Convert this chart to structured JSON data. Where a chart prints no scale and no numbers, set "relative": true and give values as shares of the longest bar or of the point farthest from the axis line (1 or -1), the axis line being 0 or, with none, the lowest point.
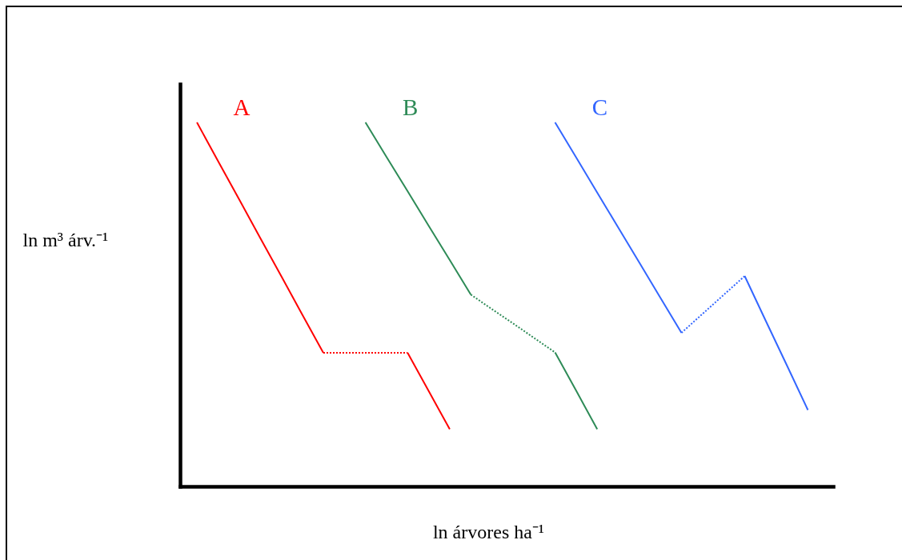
{
  "chart_data": {
    "type": "line",
    "relative": true,
    "xlabel": "ln árvores ha⁻¹",
    "ylabel": "ln m³ árv.⁻¹",
    "categories": [
      null,
      null,
      null,
      null,
      null,
      null,
      null,
      null,
      null,
      null,
      null,
      null,
      null,
      null,
      null,
      null,
      null,
      null,
      null,
      null,
      null,
      null,
      null,
      null,
      null,
      null,
      null,
      null,
      null,
      null
    ],
    "series": [
      {
        "name": "A",
        "color": "#ff0000",
        "line_style": "solid",
        "values": [
          1,
          0.894,
          0.789,
          0.683,
          0.578,
          0.472,
          0.367,
          null,
          null,
          null,
          null,
          null,
          null,
          null,
          null,
          null,
          null,
          null,
          null,
          null,
          null,
          null,
          null,
          null,
          null,
          null,
          null,
          null,
          null,
          null
        ]
      },
      {
        "color": "#ff0000",
        "line_style": "dotted",
        "values": [
          null,
          null,
          null,
          null,
          null,
          null,
          0.367,
          0.367,
          0.367,
          0.367,
          0.367,
          null,
          null,
          null,
          null,
          null,
          null,
          null,
          null,
          null,
          null,
          null,
          null,
          null,
          null,
          null,
          null,
          null,
          null,
          null
        ]
      },
      {
        "color": "#ff0000",
        "line_style": "solid",
        "values": [
          null,
          null,
          null,
          null,
          null,
          null,
          null,
          null,
          null,
          null,
          0.367,
          0.262,
          0.157,
          null,
          null,
          null,
          null,
          null,
          null,
          null,
          null,
          null,
          null,
          null,
          null,
          null,
          null,
          null,
          null,
          null
        ]
      },
      {
        "name": "B",
        "color": "#2e8b57",
        "line_style": "solid",
        "values": [
          null,
          null,
          null,
          null,
          null,
          null,
          null,
          null,
          1,
          0.905,
          0.811,
          0.716,
          0.622,
          0.527,
          null,
          null,
          null,
          null,
          null,
          null,
          null,
          null,
          null,
          null,
          null,
          null,
          null,
          null,
          null,
          null
        ]
      },
      {
        "color": "#2e8b57",
        "line_style": "dotted",
        "values": [
          null,
          null,
          null,
          null,
          null,
          null,
          null,
          null,
          null,
          null,
          null,
          null,
          null,
          0.527,
          0.487,
          0.448,
          0.408,
          0.368,
          null,
          null,
          null,
          null,
          null,
          null,
          null,
          null,
          null,
          null,
          null,
          null
        ]
      },
      {
        "color": "#2e8b57",
        "line_style": "solid",
        "values": [
          null,
          null,
          null,
          null,
          null,
          null,
          null,
          null,
          null,
          null,
          null,
          null,
          null,
          null,
          null,
          null,
          null,
          0.368,
          0.263,
          0.157,
          null,
          null,
          null,
          null,
          null,
          null,
          null,
          null,
          null,
          null
        ]
      },
      {
        "name": "C",
        "color": "#3366ff",
        "line_style": "solid",
        "values": [
          null,
          null,
          null,
          null,
          null,
          null,
          null,
          null,
          null,
          null,
          null,
          null,
          null,
          null,
          null,
          null,
          null,
          1,
          0.904,
          0.807,
          0.711,
          0.615,
          0.518,
          0.422,
          null,
          null,
          null,
          null,
          null,
          null
        ]
      },
      {
        "color": "#3366ff",
        "line_style": "dotted",
        "values": [
          null,
          null,
          null,
          null,
          null,
          null,
          null,
          null,
          null,
          null,
          null,
          null,
          null,
          null,
          null,
          null,
          null,
          null,
          null,
          null,
          null,
          null,
          null,
          0.422,
          0.474,
          0.526,
          0.578,
          null,
          null,
          null
        ]
      },
      {
        "color": "#3366ff",
        "line_style": "solid",
        "values": [
          null,
          null,
          null,
          null,
          null,
          null,
          null,
          null,
          null,
          null,
          null,
          null,
          null,
          null,
          null,
          null,
          null,
          null,
          null,
          null,
          null,
          null,
          null,
          null,
          null,
          null,
          0.578,
          0.455,
          0.333,
          0.21
        ]
      }
    ]
  }
}
